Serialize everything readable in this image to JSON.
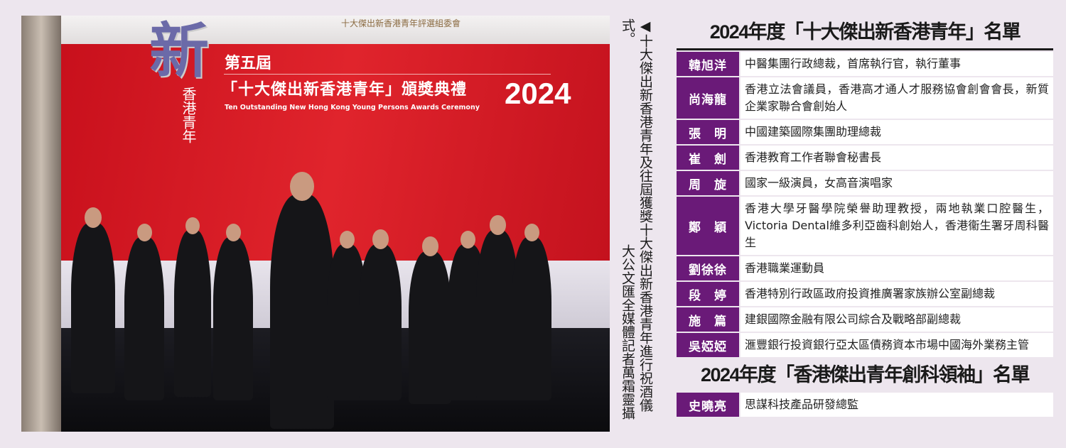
{
  "photo": {
    "sponsor_text": "十大傑出新香港青年評選組委會",
    "logo_char": "新",
    "logo_sub": "香港青年",
    "banner_line1": "第五屆",
    "banner_line2": "「十大傑出新香港青年」頒獎典禮",
    "banner_english": "Ten Outstanding New Hong Kong Young Persons Awards Ceremony",
    "banner_year": "2024"
  },
  "caption": {
    "text": "◀十大傑出新香港青年及往屆獲獎十大傑出新香港青年進行祝酒儀式。",
    "credit": "大公文匯全媒體記者萬霜靈攝"
  },
  "list1": {
    "title": "2024年度「十大傑出新香港青年」名單",
    "rows": [
      {
        "name": "韓旭洋",
        "desc": "中醫集團行政總裁，首席執行官，執行董事"
      },
      {
        "name": "尚海龍",
        "desc": "香港立法會議員，香港高才通人才服務協會創會會長，新質企業家聯合會創始人"
      },
      {
        "name": "張　明",
        "desc": "中國建築國際集團助理總裁"
      },
      {
        "name": "崔　劍",
        "desc": "香港教育工作者聯會秘書長"
      },
      {
        "name": "周　旋",
        "desc": "國家一級演員，女高音演唱家"
      },
      {
        "name": "鄭　穎",
        "desc": "香港大學牙醫學院榮譽助理教授，兩地執業口腔醫生，Victoria Dental維多利亞齒科創始人，香港衞生署牙周科醫生"
      },
      {
        "name": "劉徐徐",
        "desc": "香港職業運動員"
      },
      {
        "name": "段　婷",
        "desc": "香港特別行政區政府投資推廣署家族辦公室副總裁"
      },
      {
        "name": "施　篇",
        "desc": "建銀國際金融有限公司綜合及戰略部副總裁"
      },
      {
        "name": "吳婭婭",
        "desc": "滙豐銀行投資銀行亞太區債務資本市場中國海外業務主管"
      }
    ]
  },
  "list2": {
    "title": "2024年度「香港傑出青年創科領袖」名單",
    "rows": [
      {
        "name": "史曉亮",
        "desc": "思謀科技產品研發總監"
      }
    ]
  },
  "colors": {
    "name_cell": "#6a1a78",
    "background": "#ede6ee",
    "backdrop": "#d81a24"
  }
}
